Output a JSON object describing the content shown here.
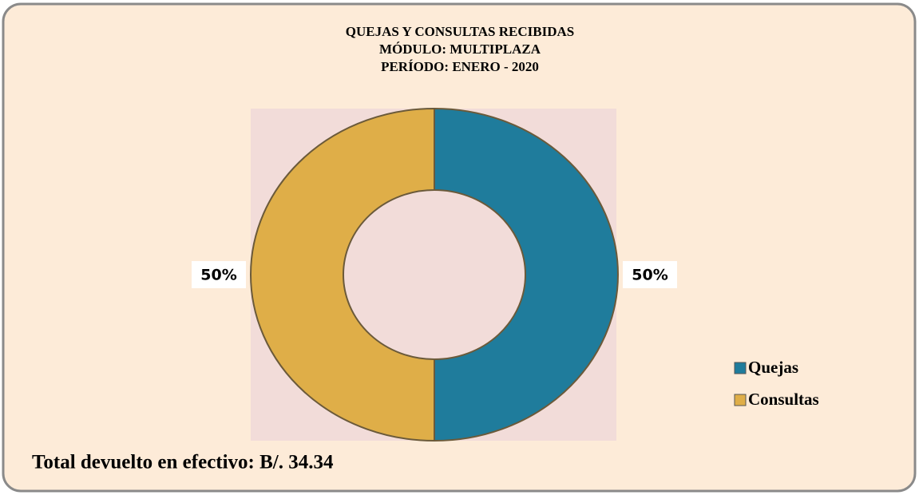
{
  "chart_data": {
    "type": "donut",
    "title": [
      "QUEJAS Y CONSULTAS RECIBIDAS",
      "MÓDULO: MULTIPLAZA",
      "PERÍODO: ENERO - 2020"
    ],
    "categories": [
      "Quejas",
      "Consultas"
    ],
    "values": [
      50,
      50
    ],
    "value_labels": [
      "50%",
      "50%"
    ],
    "colors": [
      "#1f7c9c",
      "#dfae48"
    ],
    "legend": "right",
    "footer": "Total devuelto en efectivo: B/. 34.34"
  }
}
